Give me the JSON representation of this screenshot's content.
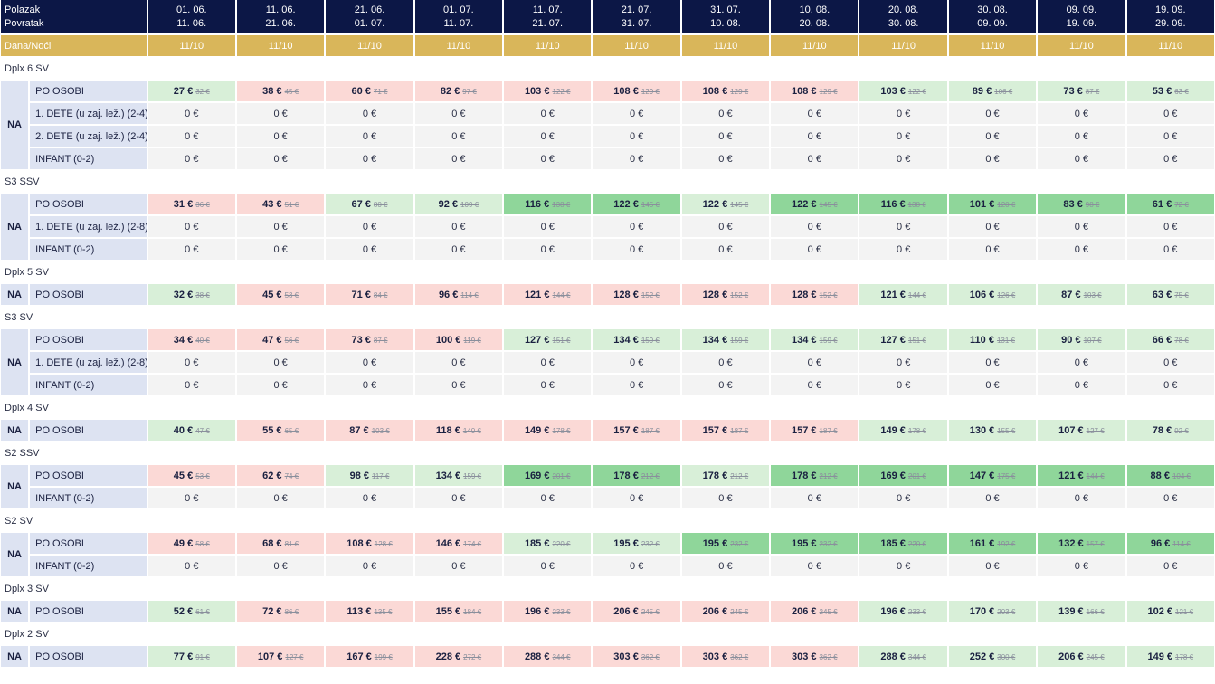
{
  "header": {
    "departure_label": "Polazak",
    "return_label": "Povratak",
    "days_nights_label": "Dana/Noći",
    "periods": [
      {
        "departure": "01. 06.",
        "return": "11. 06.",
        "days_nights": "11/10"
      },
      {
        "departure": "11. 06.",
        "return": "21. 06.",
        "days_nights": "11/10"
      },
      {
        "departure": "21. 06.",
        "return": "01. 07.",
        "days_nights": "11/10"
      },
      {
        "departure": "01. 07.",
        "return": "11. 07.",
        "days_nights": "11/10"
      },
      {
        "departure": "11. 07.",
        "return": "21. 07.",
        "days_nights": "11/10"
      },
      {
        "departure": "21. 07.",
        "return": "31. 07.",
        "days_nights": "11/10"
      },
      {
        "departure": "31. 07.",
        "return": "10. 08.",
        "days_nights": "11/10"
      },
      {
        "departure": "10. 08.",
        "return": "20. 08.",
        "days_nights": "11/10"
      },
      {
        "departure": "20. 08.",
        "return": "30. 08.",
        "days_nights": "11/10"
      },
      {
        "departure": "30. 08.",
        "return": "09. 09.",
        "days_nights": "11/10"
      },
      {
        "departure": "09. 09.",
        "return": "19. 09.",
        "days_nights": "11/10"
      },
      {
        "departure": "19. 09.",
        "return": "29. 09.",
        "days_nights": "11/10"
      }
    ]
  },
  "colors": {
    "header_bg": "#0c1746",
    "nights_bg": "#d9b65a",
    "label_bg": "#dde3f2",
    "pink": "#fbd9d6",
    "light_green": "#d8efd8",
    "dark_green": "#8fd69a",
    "zero_bg": "#f3f3f3"
  },
  "groups": [
    {
      "name": "Dplx 6 SV",
      "board": "NA",
      "rows": [
        {
          "label": "PO OSOBI",
          "cells": [
            {
              "now": "27 €",
              "old": "32 €",
              "tone": "lg"
            },
            {
              "now": "38 €",
              "old": "45 €",
              "tone": "pink"
            },
            {
              "now": "60 €",
              "old": "71 €",
              "tone": "pink"
            },
            {
              "now": "82 €",
              "old": "97 €",
              "tone": "pink"
            },
            {
              "now": "103 €",
              "old": "122 €",
              "tone": "pink"
            },
            {
              "now": "108 €",
              "old": "129 €",
              "tone": "pink"
            },
            {
              "now": "108 €",
              "old": "129 €",
              "tone": "pink"
            },
            {
              "now": "108 €",
              "old": "129 €",
              "tone": "pink"
            },
            {
              "now": "103 €",
              "old": "122 €",
              "tone": "lg"
            },
            {
              "now": "89 €",
              "old": "106 €",
              "tone": "lg"
            },
            {
              "now": "73 €",
              "old": "87 €",
              "tone": "lg"
            },
            {
              "now": "53 €",
              "old": "63 €",
              "tone": "lg"
            }
          ]
        },
        {
          "label": "1. DETE (u zaj. lež.) (2-4)",
          "zero": "0 €"
        },
        {
          "label": "2. DETE (u zaj. lež.) (2-4)",
          "zero": "0 €"
        },
        {
          "label": "INFANT (0-2)",
          "zero": "0 €"
        }
      ]
    },
    {
      "name": "S3 SSV",
      "board": "NA",
      "rows": [
        {
          "label": "PO OSOBI",
          "cells": [
            {
              "now": "31 €",
              "old": "36 €",
              "tone": "pink"
            },
            {
              "now": "43 €",
              "old": "51 €",
              "tone": "pink"
            },
            {
              "now": "67 €",
              "old": "80 €",
              "tone": "lg"
            },
            {
              "now": "92 €",
              "old": "109 €",
              "tone": "lg"
            },
            {
              "now": "116 €",
              "old": "138 €",
              "tone": "dg"
            },
            {
              "now": "122 €",
              "old": "145 €",
              "tone": "dg"
            },
            {
              "now": "122 €",
              "old": "145 €",
              "tone": "lg"
            },
            {
              "now": "122 €",
              "old": "145 €",
              "tone": "dg"
            },
            {
              "now": "116 €",
              "old": "138 €",
              "tone": "dg"
            },
            {
              "now": "101 €",
              "old": "120 €",
              "tone": "dg"
            },
            {
              "now": "83 €",
              "old": "98 €",
              "tone": "dg"
            },
            {
              "now": "61 €",
              "old": "72 €",
              "tone": "dg"
            }
          ]
        },
        {
          "label": "1. DETE (u zaj. lež.) (2-8)",
          "zero": "0 €"
        },
        {
          "label": "INFANT (0-2)",
          "zero": "0 €"
        }
      ]
    },
    {
      "name": "Dplx 5 SV",
      "board": "NA",
      "rows": [
        {
          "label": "PO OSOBI",
          "cells": [
            {
              "now": "32 €",
              "old": "38 €",
              "tone": "lg"
            },
            {
              "now": "45 €",
              "old": "53 €",
              "tone": "pink"
            },
            {
              "now": "71 €",
              "old": "84 €",
              "tone": "pink"
            },
            {
              "now": "96 €",
              "old": "114 €",
              "tone": "pink"
            },
            {
              "now": "121 €",
              "old": "144 €",
              "tone": "pink"
            },
            {
              "now": "128 €",
              "old": "152 €",
              "tone": "pink"
            },
            {
              "now": "128 €",
              "old": "152 €",
              "tone": "pink"
            },
            {
              "now": "128 €",
              "old": "152 €",
              "tone": "pink"
            },
            {
              "now": "121 €",
              "old": "144 €",
              "tone": "lg"
            },
            {
              "now": "106 €",
              "old": "126 €",
              "tone": "lg"
            },
            {
              "now": "87 €",
              "old": "103 €",
              "tone": "lg"
            },
            {
              "now": "63 €",
              "old": "75 €",
              "tone": "lg"
            }
          ]
        }
      ]
    },
    {
      "name": "S3 SV",
      "board": "NA",
      "rows": [
        {
          "label": "PO OSOBI",
          "cells": [
            {
              "now": "34 €",
              "old": "40 €",
              "tone": "pink"
            },
            {
              "now": "47 €",
              "old": "56 €",
              "tone": "pink"
            },
            {
              "now": "73 €",
              "old": "87 €",
              "tone": "pink"
            },
            {
              "now": "100 €",
              "old": "119 €",
              "tone": "pink"
            },
            {
              "now": "127 €",
              "old": "151 €",
              "tone": "lg"
            },
            {
              "now": "134 €",
              "old": "159 €",
              "tone": "lg"
            },
            {
              "now": "134 €",
              "old": "159 €",
              "tone": "lg"
            },
            {
              "now": "134 €",
              "old": "159 €",
              "tone": "lg"
            },
            {
              "now": "127 €",
              "old": "151 €",
              "tone": "lg"
            },
            {
              "now": "110 €",
              "old": "131 €",
              "tone": "lg"
            },
            {
              "now": "90 €",
              "old": "107 €",
              "tone": "lg"
            },
            {
              "now": "66 €",
              "old": "78 €",
              "tone": "lg"
            }
          ]
        },
        {
          "label": "1. DETE (u zaj. lež.) (2-8)",
          "zero": "0 €"
        },
        {
          "label": "INFANT (0-2)",
          "zero": "0 €"
        }
      ]
    },
    {
      "name": "Dplx 4 SV",
      "board": "NA",
      "rows": [
        {
          "label": "PO OSOBI",
          "cells": [
            {
              "now": "40 €",
              "old": "47 €",
              "tone": "lg"
            },
            {
              "now": "55 €",
              "old": "65 €",
              "tone": "pink"
            },
            {
              "now": "87 €",
              "old": "103 €",
              "tone": "pink"
            },
            {
              "now": "118 €",
              "old": "140 €",
              "tone": "pink"
            },
            {
              "now": "149 €",
              "old": "178 €",
              "tone": "pink"
            },
            {
              "now": "157 €",
              "old": "187 €",
              "tone": "pink"
            },
            {
              "now": "157 €",
              "old": "187 €",
              "tone": "pink"
            },
            {
              "now": "157 €",
              "old": "187 €",
              "tone": "pink"
            },
            {
              "now": "149 €",
              "old": "178 €",
              "tone": "lg"
            },
            {
              "now": "130 €",
              "old": "155 €",
              "tone": "lg"
            },
            {
              "now": "107 €",
              "old": "127 €",
              "tone": "lg"
            },
            {
              "now": "78 €",
              "old": "92 €",
              "tone": "lg"
            }
          ]
        }
      ]
    },
    {
      "name": "S2 SSV",
      "board": "NA",
      "rows": [
        {
          "label": "PO OSOBI",
          "cells": [
            {
              "now": "45 €",
              "old": "53 €",
              "tone": "pink"
            },
            {
              "now": "62 €",
              "old": "74 €",
              "tone": "pink"
            },
            {
              "now": "98 €",
              "old": "117 €",
              "tone": "lg"
            },
            {
              "now": "134 €",
              "old": "159 €",
              "tone": "lg"
            },
            {
              "now": "169 €",
              "old": "201 €",
              "tone": "dg"
            },
            {
              "now": "178 €",
              "old": "212 €",
              "tone": "dg"
            },
            {
              "now": "178 €",
              "old": "212 €",
              "tone": "lg"
            },
            {
              "now": "178 €",
              "old": "212 €",
              "tone": "dg"
            },
            {
              "now": "169 €",
              "old": "201 €",
              "tone": "dg"
            },
            {
              "now": "147 €",
              "old": "175 €",
              "tone": "dg"
            },
            {
              "now": "121 €",
              "old": "144 €",
              "tone": "dg"
            },
            {
              "now": "88 €",
              "old": "104 €",
              "tone": "dg"
            }
          ]
        },
        {
          "label": "INFANT (0-2)",
          "zero": "0 €"
        }
      ]
    },
    {
      "name": "S2 SV",
      "board": "NA",
      "rows": [
        {
          "label": "PO OSOBI",
          "cells": [
            {
              "now": "49 €",
              "old": "58 €",
              "tone": "pink"
            },
            {
              "now": "68 €",
              "old": "81 €",
              "tone": "pink"
            },
            {
              "now": "108 €",
              "old": "128 €",
              "tone": "pink"
            },
            {
              "now": "146 €",
              "old": "174 €",
              "tone": "pink"
            },
            {
              "now": "185 €",
              "old": "220 €",
              "tone": "lg"
            },
            {
              "now": "195 €",
              "old": "232 €",
              "tone": "lg"
            },
            {
              "now": "195 €",
              "old": "232 €",
              "tone": "dg"
            },
            {
              "now": "195 €",
              "old": "232 €",
              "tone": "dg"
            },
            {
              "now": "185 €",
              "old": "220 €",
              "tone": "dg"
            },
            {
              "now": "161 €",
              "old": "192 €",
              "tone": "dg"
            },
            {
              "now": "132 €",
              "old": "157 €",
              "tone": "dg"
            },
            {
              "now": "96 €",
              "old": "114 €",
              "tone": "dg"
            }
          ]
        },
        {
          "label": "INFANT (0-2)",
          "zero": "0 €"
        }
      ]
    },
    {
      "name": "Dplx 3 SV",
      "board": "NA",
      "rows": [
        {
          "label": "PO OSOBI",
          "cells": [
            {
              "now": "52 €",
              "old": "61 €",
              "tone": "lg"
            },
            {
              "now": "72 €",
              "old": "86 €",
              "tone": "pink"
            },
            {
              "now": "113 €",
              "old": "135 €",
              "tone": "pink"
            },
            {
              "now": "155 €",
              "old": "184 €",
              "tone": "pink"
            },
            {
              "now": "196 €",
              "old": "233 €",
              "tone": "pink"
            },
            {
              "now": "206 €",
              "old": "245 €",
              "tone": "pink"
            },
            {
              "now": "206 €",
              "old": "245 €",
              "tone": "pink"
            },
            {
              "now": "206 €",
              "old": "245 €",
              "tone": "pink"
            },
            {
              "now": "196 €",
              "old": "233 €",
              "tone": "lg"
            },
            {
              "now": "170 €",
              "old": "203 €",
              "tone": "lg"
            },
            {
              "now": "139 €",
              "old": "166 €",
              "tone": "lg"
            },
            {
              "now": "102 €",
              "old": "121 €",
              "tone": "lg"
            }
          ]
        }
      ]
    },
    {
      "name": "Dplx 2 SV",
      "board": "NA",
      "rows": [
        {
          "label": "PO OSOBI",
          "cells": [
            {
              "now": "77 €",
              "old": "91 €",
              "tone": "lg"
            },
            {
              "now": "107 €",
              "old": "127 €",
              "tone": "pink"
            },
            {
              "now": "167 €",
              "old": "199 €",
              "tone": "pink"
            },
            {
              "now": "228 €",
              "old": "272 €",
              "tone": "pink"
            },
            {
              "now": "288 €",
              "old": "344 €",
              "tone": "pink"
            },
            {
              "now": "303 €",
              "old": "362 €",
              "tone": "pink"
            },
            {
              "now": "303 €",
              "old": "362 €",
              "tone": "pink"
            },
            {
              "now": "303 €",
              "old": "362 €",
              "tone": "pink"
            },
            {
              "now": "288 €",
              "old": "344 €",
              "tone": "lg"
            },
            {
              "now": "252 €",
              "old": "300 €",
              "tone": "lg"
            },
            {
              "now": "206 €",
              "old": "245 €",
              "tone": "lg"
            },
            {
              "now": "149 €",
              "old": "178 €",
              "tone": "lg"
            }
          ]
        }
      ]
    }
  ]
}
